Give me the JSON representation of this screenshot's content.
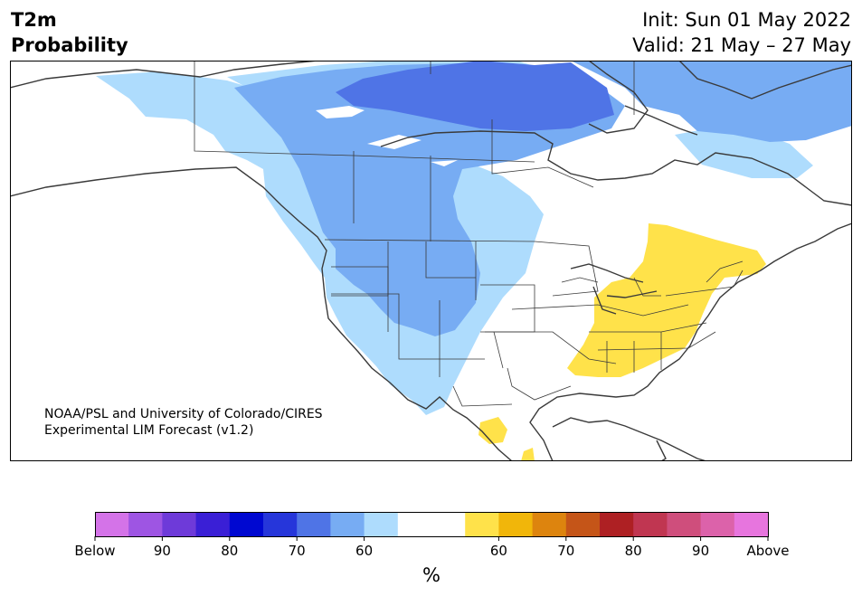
{
  "header": {
    "variable": "T2m",
    "quantity": "Probability",
    "init": "Init: Sun 01 May 2022",
    "valid": "Valid: 21 May – 27 May"
  },
  "credit": {
    "line1": "NOAA/PSL and University of Colorado/CIRES",
    "line2": "Experimental LIM Forecast (v1.2)"
  },
  "colorbar": {
    "unit": "%",
    "below_colors": [
      "#d473e8",
      "#9e55e3",
      "#6e3ad9",
      "#3a1fd6",
      "#0008d1",
      "#2636da",
      "#4f74e6",
      "#77acf3",
      "#aedcfd"
    ],
    "neutral_color": "#ffffff",
    "above_colors": [
      "#ffe24a",
      "#f1b60a",
      "#dd840e",
      "#c55518",
      "#ae2023",
      "#c03651",
      "#cf4e7c",
      "#dc62aa",
      "#e775de"
    ],
    "tick_labels": [
      "Below",
      "90",
      "80",
      "70",
      "60",
      "60",
      "70",
      "80",
      "90",
      "Above"
    ]
  },
  "map": {
    "land_color": "#ffffff",
    "line_color": "#3a3a3a",
    "probability_levels": [
      {
        "category": "below",
        "level": "60",
        "color": "#aedcfd"
      },
      {
        "category": "below",
        "level": "70",
        "color": "#77acf3"
      },
      {
        "category": "below",
        "level": "80",
        "color": "#4f74e6"
      },
      {
        "category": "above",
        "level": "60",
        "color": "#ffe24a"
      }
    ]
  }
}
